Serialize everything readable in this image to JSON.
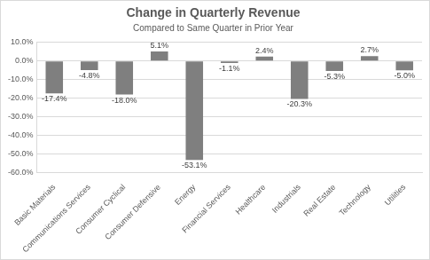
{
  "chart_data": {
    "type": "bar",
    "title": "Change in Quarterly Revenue",
    "subtitle": "Compared to Same Quarter in Prior Year",
    "categories": [
      "Basic Materials",
      "Communications Services",
      "Consumer Cyclical",
      "Consumer Defensive",
      "Energy",
      "Financial Services",
      "Healthcare",
      "Industrials",
      "Real Estate",
      "Technology",
      "Utilities"
    ],
    "values": [
      -17.4,
      -4.8,
      -18.0,
      5.1,
      -53.1,
      -1.1,
      2.4,
      -20.3,
      -5.3,
      2.7,
      -5.0
    ],
    "value_labels": [
      "-17.4%",
      "-4.8%",
      "-18.0%",
      "5.1%",
      "-53.1%",
      "-1.1%",
      "2.4%",
      "-20.3%",
      "-5.3%",
      "2.7%",
      "-5.0%"
    ],
    "color": "#7f7f7f",
    "ylim": [
      -60,
      10
    ],
    "yticks": [
      {
        "value": -60,
        "label": "-60.0%"
      },
      {
        "value": -50,
        "label": "-50.0%"
      },
      {
        "value": -40,
        "label": "-40.0%"
      },
      {
        "value": -30,
        "label": "-30.0%"
      },
      {
        "value": -20,
        "label": "-20.0%"
      },
      {
        "value": -10,
        "label": "-10.0%"
      },
      {
        "value": 0,
        "label": "0.0%"
      },
      {
        "value": 10,
        "label": "10.0%"
      }
    ],
    "grid": true,
    "data_labels": true
  }
}
